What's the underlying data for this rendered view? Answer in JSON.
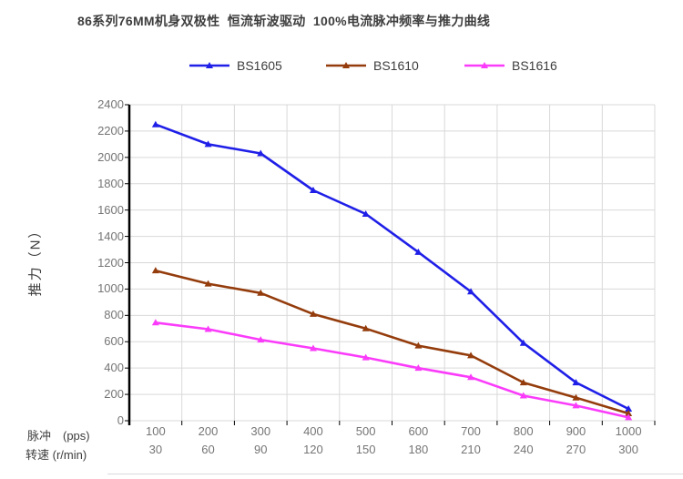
{
  "title": "86系列76MM机身双极性  恒流斩波驱动  100%电流脉冲频率与推力曲线",
  "chart_data": {
    "type": "line",
    "title": "86系列76MM机身双极性 恒流斩波驱动 100%电流脉冲频率与推力曲线",
    "ylabel": "推力（N）",
    "ylim": [
      0,
      2400
    ],
    "ystep": 200,
    "grid": true,
    "legend_position": "top",
    "x_rows": [
      {
        "label": "脉冲　(pps)",
        "values": [
          100,
          200,
          300,
          400,
          500,
          600,
          700,
          800,
          900,
          1000
        ]
      },
      {
        "label": "转速 (r/min)",
        "values": [
          30,
          60,
          90,
          120,
          150,
          180,
          210,
          240,
          270,
          300
        ]
      }
    ],
    "series": [
      {
        "name": "BS1605",
        "color": "#1f1fe8",
        "values": [
          2250,
          2100,
          2030,
          1750,
          1570,
          1280,
          980,
          590,
          290,
          90
        ]
      },
      {
        "name": "BS1610",
        "color": "#943c0c",
        "values": [
          1140,
          1040,
          970,
          810,
          700,
          570,
          495,
          290,
          175,
          55
        ]
      },
      {
        "name": "BS1616",
        "color": "#fa3cfa",
        "values": [
          745,
          695,
          615,
          550,
          480,
          400,
          330,
          190,
          115,
          25
        ]
      }
    ],
    "colors": {
      "gridline": "#d9d9d9",
      "axis": "#000000",
      "tick_label": "#757575",
      "text": "#3d3d3d"
    }
  }
}
